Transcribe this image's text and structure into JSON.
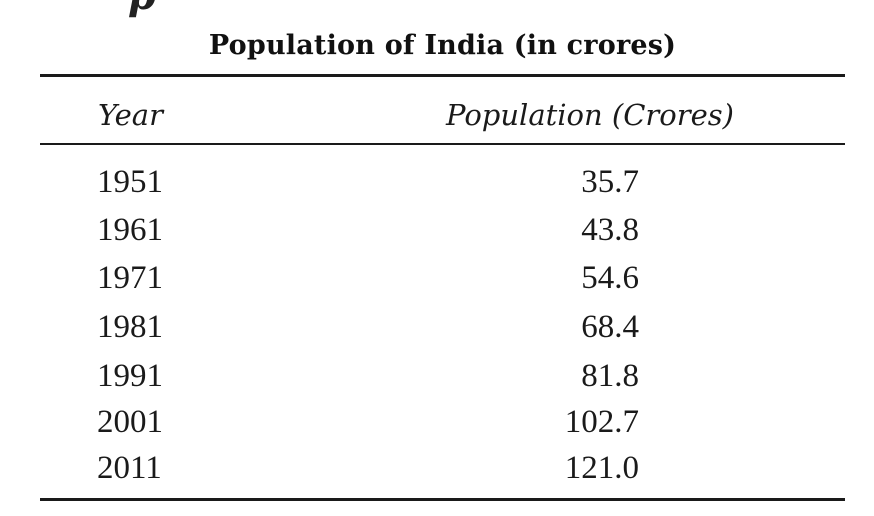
{
  "top_fragment": "p",
  "chart_data": {
    "type": "table",
    "title": "Population of India (in crores)",
    "columns": [
      "Year",
      "Population (Crores)"
    ],
    "rows": [
      [
        "1951",
        "35.7"
      ],
      [
        "1961",
        "43.8"
      ],
      [
        "1971",
        "54.6"
      ],
      [
        "1981",
        "68.4"
      ],
      [
        "1991",
        "81.8"
      ],
      [
        "2001",
        "102.7"
      ],
      [
        "2011",
        "121.0"
      ]
    ]
  }
}
